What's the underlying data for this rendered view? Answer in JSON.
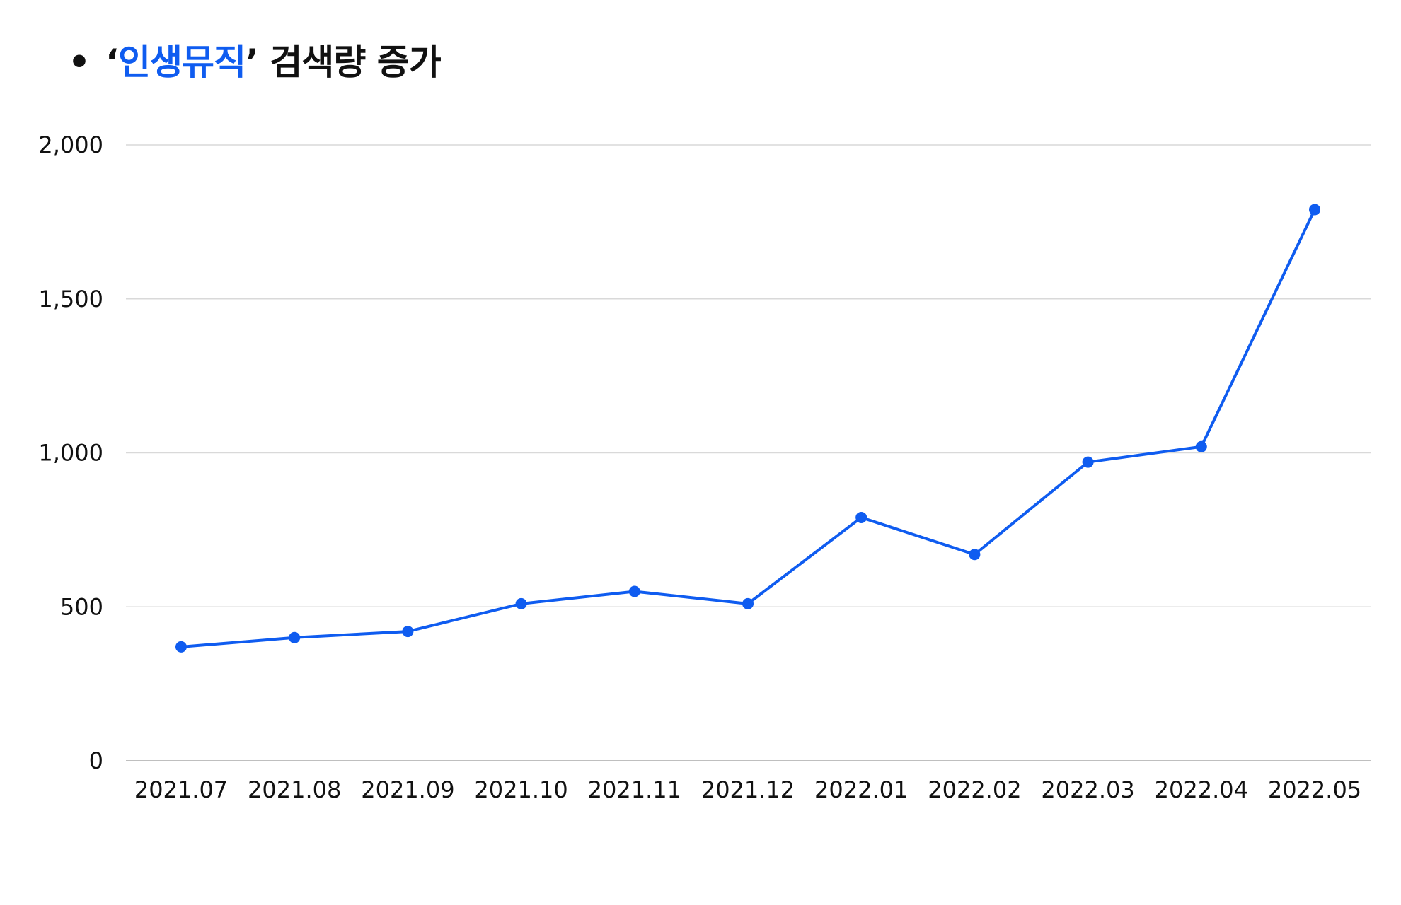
{
  "title": {
    "bullet": "•",
    "quote_open": "‘",
    "highlight": "인생뮤직",
    "quote_close": "’",
    "rest": " 검색량 증가"
  },
  "colors": {
    "line": "#0f5cf0",
    "grid": "#d9d9d9",
    "axis": "#bfbfbf",
    "accent": "#0f5cf0"
  },
  "chart_data": {
    "type": "line",
    "title": "• ‘인생뮤직’ 검색량 증가",
    "categories": [
      "2021.07",
      "2021.08",
      "2021.09",
      "2021.10",
      "2021.11",
      "2021.12",
      "2022.01",
      "2022.02",
      "2022.03",
      "2022.04",
      "2022.05"
    ],
    "series": [
      {
        "values": [
          370,
          400,
          420,
          510,
          550,
          510,
          790,
          670,
          970,
          1020,
          1790
        ]
      }
    ],
    "yticks": [
      0,
      500,
      1000,
      1500,
      2000
    ],
    "ytick_labels": [
      "0",
      "500",
      "1,000",
      "1,500",
      "2,000"
    ],
    "ylim": [
      0,
      2000
    ],
    "grid": true,
    "legend": "none",
    "markers": true
  }
}
